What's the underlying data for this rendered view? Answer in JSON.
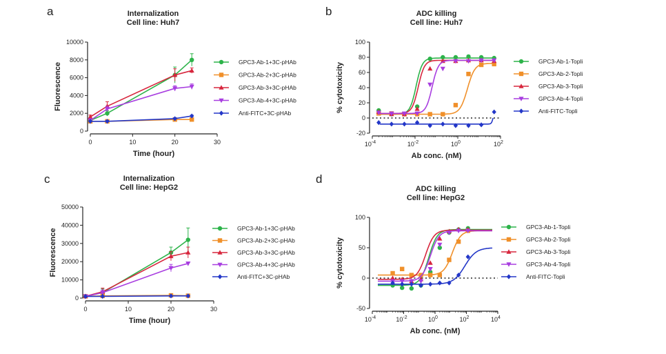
{
  "panel_labels": [
    "a",
    "b",
    "c",
    "d"
  ],
  "colors": {
    "green": "#2db34a",
    "orange": "#f0902a",
    "red": "#d7263d",
    "purple": "#a83de0",
    "blue": "#2337c8"
  },
  "chart_data": [
    {
      "id": "a",
      "type": "line",
      "title": [
        "Internalization",
        "Cell line: Huh7"
      ],
      "xlabel": "Time (hour)",
      "ylabel": "Fluorescence",
      "xscale": "linear",
      "xlim": [
        0,
        30
      ],
      "ylim": [
        0,
        10000
      ],
      "xticks": [
        0,
        10,
        20,
        30
      ],
      "xtick_labels": [
        "0",
        "10",
        "20",
        "30"
      ],
      "yticks": [
        0,
        2000,
        4000,
        6000,
        8000,
        10000
      ],
      "ytick_labels": [
        "0",
        "2000",
        "4000",
        "6000",
        "8000",
        "10000"
      ],
      "legend_position": "right",
      "series": [
        {
          "name": "GPC3-Ab-1+3C-pHAb",
          "color": "green",
          "marker": "circle",
          "x": [
            0,
            4,
            20,
            24
          ],
          "y": [
            1200,
            2000,
            6300,
            8000
          ],
          "err": [
            200,
            300,
            900,
            700
          ]
        },
        {
          "name": "GPC3-Ab-2+3C-pHAb",
          "color": "orange",
          "marker": "square",
          "x": [
            0,
            4,
            20,
            24
          ],
          "y": [
            1100,
            1100,
            1300,
            1300
          ],
          "err": [
            100,
            100,
            100,
            100
          ]
        },
        {
          "name": "GPC3-Ab-3+3C-pHAb",
          "color": "red",
          "marker": "triangle-up",
          "x": [
            0,
            4,
            20,
            24
          ],
          "y": [
            1600,
            2800,
            6300,
            6800
          ],
          "err": [
            200,
            500,
            700,
            300
          ]
        },
        {
          "name": "GPC3-Ab-4+3C-pHAb",
          "color": "purple",
          "marker": "triangle-down",
          "x": [
            0,
            4,
            20,
            24
          ],
          "y": [
            1200,
            2500,
            4800,
            5000
          ],
          "err": [
            200,
            300,
            300,
            300
          ]
        },
        {
          "name": "Anti-FITC+3C-pHAb",
          "color": "blue",
          "marker": "diamond",
          "x": [
            0,
            4,
            20,
            24
          ],
          "y": [
            1100,
            1100,
            1400,
            1700
          ],
          "err": [
            100,
            100,
            100,
            100
          ]
        }
      ]
    },
    {
      "id": "b",
      "type": "line",
      "title": [
        "ADC killing",
        "Cell line: Huh7"
      ],
      "xlabel": "Ab conc. (nM)",
      "ylabel": "% cytotoxicity",
      "xscale": "log",
      "xlim": [
        -4,
        2
      ],
      "ylim": [
        -20,
        100
      ],
      "xticks": [
        -4,
        -2,
        0,
        2
      ],
      "xtick_labels": [
        "10",
        "10",
        "10",
        "10"
      ],
      "xtick_exponents": [
        "-4",
        "-2",
        "0",
        "2"
      ],
      "yticks": [
        -20,
        0,
        20,
        40,
        60,
        80,
        100
      ],
      "ytick_labels": [
        "-20",
        "0",
        "20",
        "40",
        "60",
        "80",
        "100"
      ],
      "zero_line": "dotted",
      "legend_position": "right",
      "series": [
        {
          "name": "GPC3-Ab-1-Topli",
          "color": "green",
          "marker": "circle",
          "x": [
            -3.7,
            -3.1,
            -2.5,
            -1.9,
            -1.3,
            -0.7,
            -0.1,
            0.5,
            1.1,
            1.7
          ],
          "y": [
            10,
            5,
            5,
            15,
            78,
            80,
            80,
            81,
            80,
            79
          ],
          "fit": {
            "bottom": 5,
            "top": 79,
            "logec50": -1.95,
            "hill": 3
          }
        },
        {
          "name": "GPC3-Ab-2-Topli",
          "color": "orange",
          "marker": "square",
          "x": [
            -3.7,
            -3.1,
            -2.5,
            -1.9,
            -1.3,
            -0.7,
            -0.1,
            0.5,
            1.1,
            1.7
          ],
          "y": [
            6,
            6,
            5,
            5,
            5,
            5,
            17,
            58,
            70,
            71
          ],
          "fit": {
            "bottom": 5,
            "top": 72,
            "logec50": 0.45,
            "hill": 2.5
          }
        },
        {
          "name": "GPC3-Ab-3-Topli",
          "color": "red",
          "marker": "triangle-up",
          "x": [
            -3.7,
            -3.1,
            -2.5,
            -1.9,
            -1.3,
            -0.7,
            -0.1,
            0.5,
            1.1,
            1.7
          ],
          "y": [
            8,
            5,
            5,
            12,
            65,
            75,
            75,
            76,
            76,
            75
          ],
          "fit": {
            "bottom": 6,
            "top": 76,
            "logec50": -1.85,
            "hill": 3
          }
        },
        {
          "name": "GPC3-Ab-4-Topli",
          "color": "purple",
          "marker": "triangle-down",
          "x": [
            -3.7,
            -3.1,
            -2.5,
            -1.9,
            -1.3,
            -0.7,
            -0.1,
            0.5,
            1.1,
            1.7
          ],
          "y": [
            7,
            6,
            6,
            6,
            44,
            65,
            75,
            75,
            76,
            76
          ],
          "fit": {
            "bottom": 6,
            "top": 76,
            "logec50": -1.2,
            "hill": 3
          }
        },
        {
          "name": "Anti-FITC-Topli",
          "color": "blue",
          "marker": "diamond",
          "x": [
            -3.7,
            -3.1,
            -2.5,
            -1.9,
            -1.3,
            -0.7,
            -0.1,
            0.5,
            1.1,
            1.7
          ],
          "y": [
            -6,
            -8,
            -8,
            -6,
            -10,
            -8,
            -10,
            -10,
            -9,
            8
          ],
          "fit": {
            "bottom": -8,
            "top": 8,
            "logec50": 1.65,
            "hill": 12
          }
        }
      ]
    },
    {
      "id": "c",
      "type": "line",
      "title": [
        "Internalization",
        "Cell line: HepG2"
      ],
      "xlabel": "Time (hour)",
      "ylabel": "Fluorescence",
      "xscale": "linear",
      "xlim": [
        0,
        30
      ],
      "ylim": [
        0,
        50000
      ],
      "xticks": [
        0,
        10,
        20,
        30
      ],
      "xtick_labels": [
        "0",
        "10",
        "20",
        "30"
      ],
      "yticks": [
        0,
        10000,
        20000,
        30000,
        40000,
        50000
      ],
      "ytick_labels": [
        "0",
        "10000",
        "20000",
        "30000",
        "40000",
        "50000"
      ],
      "legend_position": "right",
      "series": [
        {
          "name": "GPC3-Ab-1+3C-pHAb",
          "color": "green",
          "marker": "circle",
          "x": [
            0,
            4,
            20,
            24
          ],
          "y": [
            1000,
            3000,
            25000,
            32000
          ],
          "err": [
            300,
            2000,
            3000,
            6500
          ]
        },
        {
          "name": "GPC3-Ab-2+3C-pHAb",
          "color": "orange",
          "marker": "square",
          "x": [
            0,
            4,
            20,
            24
          ],
          "y": [
            1000,
            1200,
            1500,
            1300
          ],
          "err": [
            200,
            200,
            300,
            200
          ]
        },
        {
          "name": "GPC3-Ab-3+3C-pHAb",
          "color": "red",
          "marker": "triangle-up",
          "x": [
            0,
            4,
            20,
            24
          ],
          "y": [
            1000,
            3500,
            23000,
            25000
          ],
          "err": [
            300,
            2000,
            2500,
            3000
          ]
        },
        {
          "name": "GPC3-Ab-4+3C-pHAb",
          "color": "purple",
          "marker": "triangle-down",
          "x": [
            0,
            4,
            20,
            24
          ],
          "y": [
            1000,
            3000,
            16500,
            19000
          ],
          "err": [
            300,
            1500,
            2000,
            800
          ]
        },
        {
          "name": "Anti-FITC+3C-pHAb",
          "color": "blue",
          "marker": "diamond",
          "x": [
            0,
            4,
            20,
            24
          ],
          "y": [
            900,
            1000,
            1200,
            1200
          ],
          "err": [
            100,
            100,
            100,
            100
          ]
        }
      ]
    },
    {
      "id": "d",
      "type": "line",
      "title": [
        "ADC killing",
        "Cell line: HepG2"
      ],
      "xlabel": "Ab conc. (nM)",
      "ylabel": "% cytotoxicity",
      "xscale": "log",
      "xlim": [
        -4,
        4
      ],
      "ylim": [
        -50,
        100
      ],
      "xticks": [
        -4,
        -2,
        0,
        2,
        4
      ],
      "xtick_labels": [
        "10",
        "10",
        "10",
        "10",
        "10"
      ],
      "xtick_exponents": [
        "-4",
        "-2",
        "0",
        "2",
        "4"
      ],
      "yticks": [
        -50,
        0,
        50,
        100
      ],
      "ytick_labels": [
        "-50",
        "0",
        "50",
        "100"
      ],
      "zero_line": "dotted",
      "legend_position": "right",
      "series": [
        {
          "name": "GPC3-Ab-1-Topli",
          "color": "green",
          "marker": "circle",
          "x": [
            -2.7,
            -2.1,
            -1.5,
            -0.9,
            -0.3,
            0.3,
            0.9,
            1.5,
            2.1
          ],
          "y": [
            -12,
            -16,
            -17,
            -12,
            10,
            50,
            75,
            80,
            82
          ],
          "fit": {
            "bottom": -12,
            "top": 80,
            "logec50": -0.4,
            "hill": 1.6
          }
        },
        {
          "name": "GPC3-Ab-2-Topli",
          "color": "orange",
          "marker": "square",
          "x": [
            -2.7,
            -2.1,
            -1.5,
            -0.9,
            -0.3,
            0.3,
            0.9,
            1.5,
            2.1
          ],
          "y": [
            8,
            15,
            5,
            5,
            5,
            5,
            30,
            60,
            78
          ],
          "fit": {
            "bottom": 5,
            "top": 78,
            "logec50": 1.1,
            "hill": 1.6
          }
        },
        {
          "name": "GPC3-Ab-3-Topli",
          "color": "red",
          "marker": "triangle-up",
          "x": [
            -2.7,
            -2.1,
            -1.5,
            -0.9,
            -0.3,
            0.3,
            0.9,
            1.5,
            2.1
          ],
          "y": [
            0,
            -2,
            -5,
            -2,
            25,
            65,
            77,
            80,
            80
          ],
          "fit": {
            "bottom": -2,
            "top": 79,
            "logec50": -0.6,
            "hill": 1.6
          }
        },
        {
          "name": "GPC3-Ab-4-Topli",
          "color": "purple",
          "marker": "triangle-down",
          "x": [
            -2.7,
            -2.1,
            -1.5,
            -0.9,
            -0.3,
            0.3,
            0.9,
            1.5,
            2.1
          ],
          "y": [
            -5,
            -5,
            -5,
            -5,
            15,
            55,
            75,
            78,
            78
          ],
          "fit": {
            "bottom": -5,
            "top": 78,
            "logec50": -0.3,
            "hill": 1.6
          }
        },
        {
          "name": "Anti-FITC-Topli",
          "color": "blue",
          "marker": "diamond",
          "x": [
            -2.7,
            -2.1,
            -1.5,
            -0.9,
            -0.3,
            0.3,
            0.9,
            1.5,
            2.1
          ],
          "y": [
            -8,
            -10,
            -10,
            -12,
            -10,
            -8,
            -8,
            5,
            35
          ],
          "fit": {
            "bottom": -10,
            "top": 50,
            "logec50": 1.9,
            "hill": 1.2
          }
        }
      ]
    }
  ]
}
